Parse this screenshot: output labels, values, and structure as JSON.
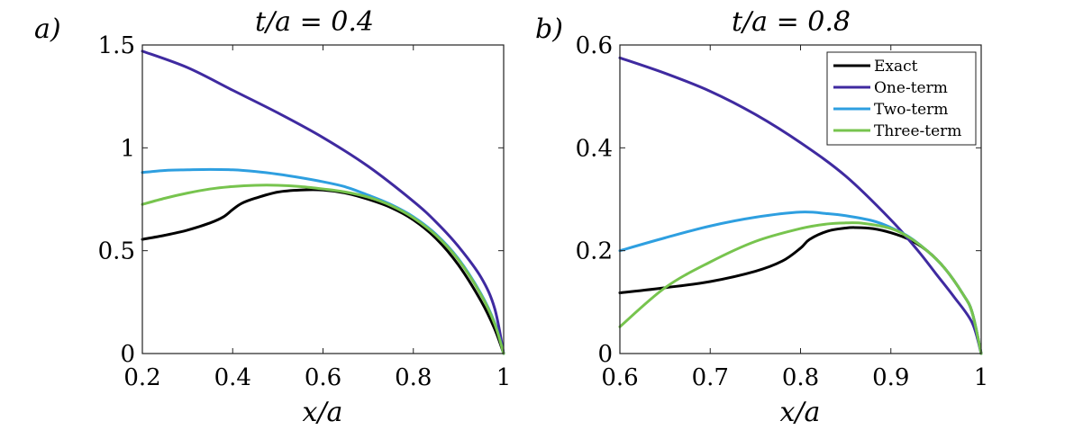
{
  "chart_data": [
    {
      "type": "line",
      "panel_label": "a)",
      "title": "t/a = 0.4",
      "xlabel": "x/a",
      "ylabel": "",
      "xlim": [
        0.2,
        1.0
      ],
      "ylim": [
        0,
        1.5
      ],
      "xticks": [
        0.2,
        0.4,
        0.6,
        0.8,
        1.0
      ],
      "xtick_labels": [
        "0.2",
        "0.4",
        "0.6",
        "0.8",
        "1"
      ],
      "yticks": [
        0,
        0.5,
        1.0,
        1.5
      ],
      "ytick_labels": [
        "0",
        "0.5",
        "1",
        "1.5"
      ],
      "series": [
        {
          "name": "Exact",
          "color": "#000000",
          "x": [
            0.2,
            0.25,
            0.3,
            0.35,
            0.38,
            0.4,
            0.42,
            0.45,
            0.5,
            0.55,
            0.6,
            0.65,
            0.7,
            0.75,
            0.8,
            0.85,
            0.9,
            0.95,
            0.98,
            1.0
          ],
          "y": [
            0.555,
            0.575,
            0.6,
            0.635,
            0.665,
            0.7,
            0.73,
            0.755,
            0.785,
            0.795,
            0.795,
            0.78,
            0.75,
            0.71,
            0.65,
            0.56,
            0.43,
            0.255,
            0.12,
            0.0
          ]
        },
        {
          "name": "One-term",
          "color": "#3f2aa0",
          "x": [
            0.2,
            0.3,
            0.4,
            0.5,
            0.6,
            0.7,
            0.8,
            0.85,
            0.9,
            0.95,
            0.98,
            1.0
          ],
          "y": [
            1.47,
            1.39,
            1.28,
            1.17,
            1.05,
            0.91,
            0.74,
            0.64,
            0.52,
            0.37,
            0.22,
            0.0
          ]
        },
        {
          "name": "Two-term",
          "color": "#2e9fe0",
          "x": [
            0.2,
            0.25,
            0.3,
            0.35,
            0.4,
            0.45,
            0.5,
            0.55,
            0.6,
            0.65,
            0.7,
            0.75,
            0.8,
            0.85,
            0.9,
            0.95,
            0.98,
            1.0
          ],
          "y": [
            0.88,
            0.89,
            0.893,
            0.895,
            0.893,
            0.885,
            0.872,
            0.855,
            0.835,
            0.81,
            0.77,
            0.725,
            0.665,
            0.58,
            0.46,
            0.29,
            0.15,
            0.0
          ]
        },
        {
          "name": "Three-term",
          "color": "#77c44e",
          "x": [
            0.2,
            0.25,
            0.3,
            0.35,
            0.4,
            0.45,
            0.5,
            0.55,
            0.6,
            0.65,
            0.7,
            0.75,
            0.8,
            0.85,
            0.9,
            0.95,
            0.98,
            1.0
          ],
          "y": [
            0.725,
            0.755,
            0.78,
            0.8,
            0.812,
            0.818,
            0.818,
            0.812,
            0.8,
            0.785,
            0.76,
            0.72,
            0.66,
            0.575,
            0.455,
            0.285,
            0.145,
            0.0
          ]
        }
      ]
    },
    {
      "type": "line",
      "panel_label": "b)",
      "title": "t/a = 0.8",
      "xlabel": "x/a",
      "ylabel": "",
      "xlim": [
        0.6,
        1.0
      ],
      "ylim": [
        0,
        0.6
      ],
      "xticks": [
        0.6,
        0.7,
        0.8,
        0.9,
        1.0
      ],
      "xtick_labels": [
        "0.6",
        "0.7",
        "0.8",
        "0.9",
        "1"
      ],
      "yticks": [
        0,
        0.2,
        0.4,
        0.6
      ],
      "ytick_labels": [
        "0",
        "0.2",
        "0.4",
        "0.6"
      ],
      "legend": {
        "position": "top-right",
        "entries": [
          "Exact",
          "One-term",
          "Two-term",
          "Three-term"
        ]
      },
      "series": [
        {
          "name": "Exact",
          "color": "#000000",
          "x": [
            0.6,
            0.65,
            0.7,
            0.75,
            0.78,
            0.8,
            0.81,
            0.83,
            0.85,
            0.86,
            0.88,
            0.9,
            0.92,
            0.94,
            0.96,
            0.98,
            0.99,
            1.0
          ],
          "y": [
            0.118,
            0.128,
            0.14,
            0.16,
            0.18,
            0.205,
            0.222,
            0.238,
            0.244,
            0.245,
            0.243,
            0.235,
            0.222,
            0.2,
            0.165,
            0.115,
            0.08,
            0.0
          ]
        },
        {
          "name": "One-term",
          "color": "#3f2aa0",
          "x": [
            0.6,
            0.65,
            0.7,
            0.75,
            0.8,
            0.85,
            0.9,
            0.93,
            0.95,
            0.97,
            0.99,
            1.0
          ],
          "y": [
            0.575,
            0.545,
            0.51,
            0.465,
            0.41,
            0.345,
            0.26,
            0.2,
            0.155,
            0.11,
            0.06,
            0.0
          ]
        },
        {
          "name": "Two-term",
          "color": "#2e9fe0",
          "x": [
            0.6,
            0.65,
            0.7,
            0.75,
            0.8,
            0.83,
            0.85,
            0.88,
            0.9,
            0.92,
            0.94,
            0.96,
            0.98,
            0.99,
            1.0
          ],
          "y": [
            0.2,
            0.225,
            0.248,
            0.265,
            0.275,
            0.272,
            0.268,
            0.258,
            0.245,
            0.227,
            0.2,
            0.165,
            0.115,
            0.08,
            0.0
          ]
        },
        {
          "name": "Three-term",
          "color": "#77c44e",
          "x": [
            0.6,
            0.65,
            0.7,
            0.75,
            0.8,
            0.83,
            0.85,
            0.87,
            0.9,
            0.92,
            0.94,
            0.96,
            0.98,
            0.99,
            1.0
          ],
          "y": [
            0.052,
            0.128,
            0.178,
            0.218,
            0.243,
            0.252,
            0.254,
            0.253,
            0.243,
            0.226,
            0.2,
            0.165,
            0.115,
            0.08,
            0.0
          ]
        }
      ]
    }
  ]
}
